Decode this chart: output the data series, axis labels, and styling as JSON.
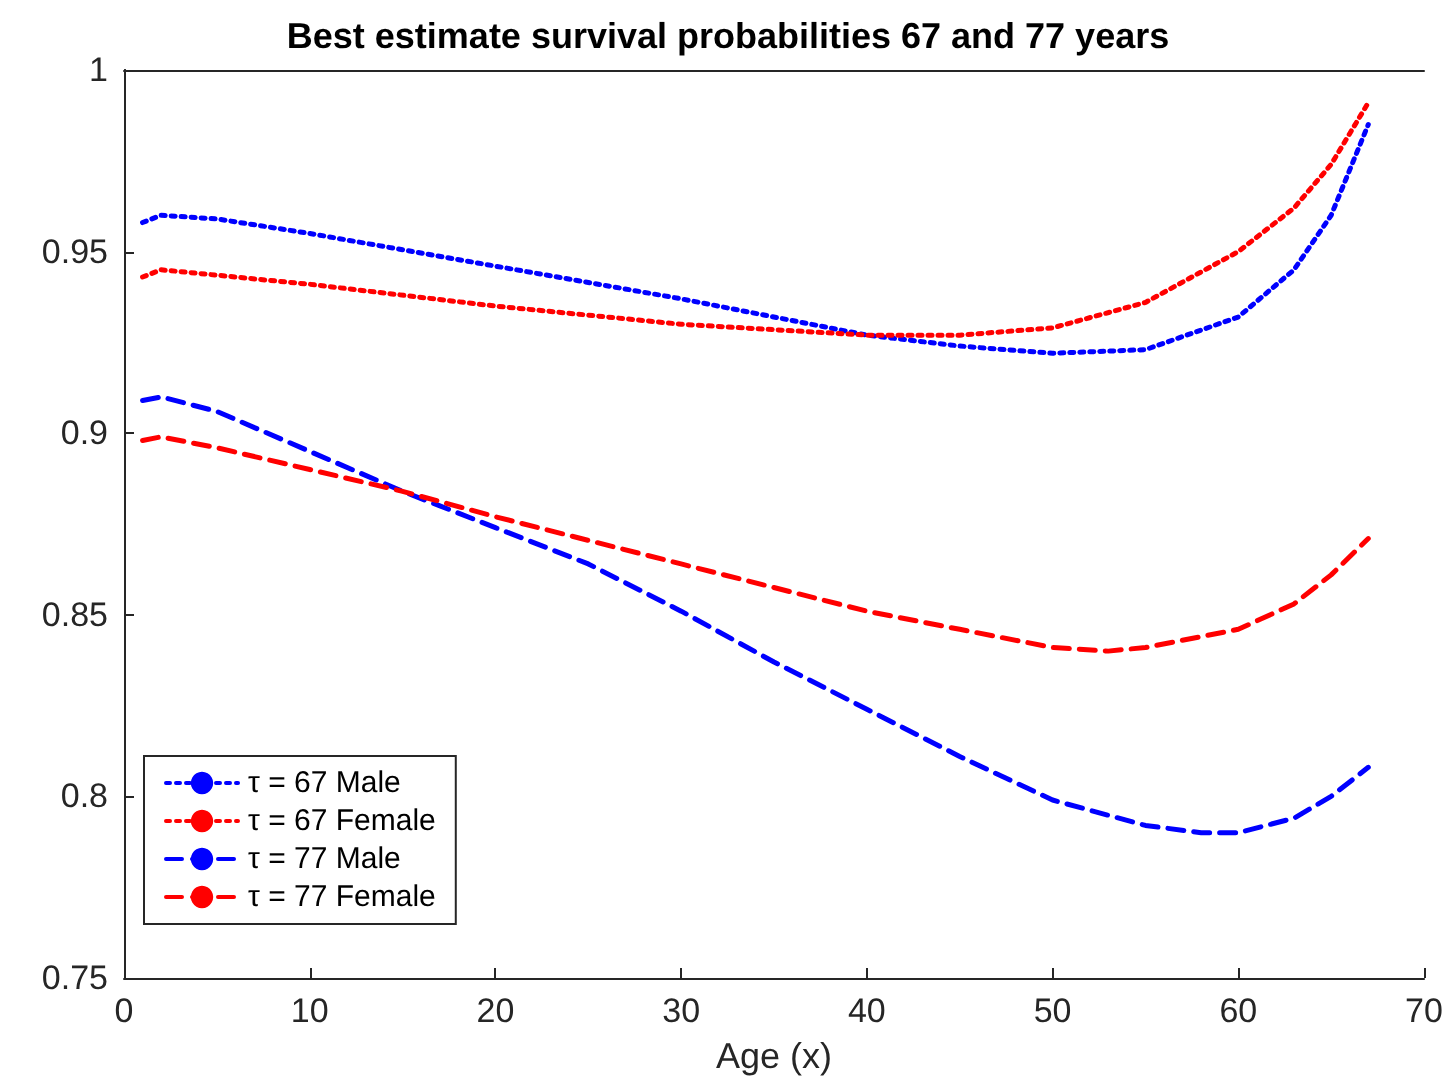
{
  "chart_data": {
    "type": "line",
    "title": "Best estimate survival probabilities 67 and 77 years",
    "xlabel": "Age (x)",
    "xlim": [
      0,
      70
    ],
    "xticks": [
      0,
      10,
      20,
      30,
      40,
      50,
      60,
      70
    ],
    "ylim": [
      0.75,
      1
    ],
    "yticks": [
      0.75,
      0.8,
      0.85,
      0.9,
      0.95,
      1
    ],
    "grid": false,
    "legend": "bottom left",
    "marker": "none",
    "series": [
      {
        "name": "τ = 67 Male",
        "color": "#0000ff",
        "line_style": "dotted",
        "x": [
          1,
          2,
          5,
          10,
          20,
          30,
          40,
          45,
          50,
          55,
          60,
          63,
          65,
          67
        ],
        "values": [
          0.958,
          0.96,
          0.959,
          0.955,
          0.946,
          0.937,
          0.927,
          0.924,
          0.922,
          0.923,
          0.932,
          0.945,
          0.96,
          0.985
        ]
      },
      {
        "name": "τ = 67 Female",
        "color": "#ff0000",
        "line_style": "dotted",
        "x": [
          1,
          2,
          10,
          20,
          30,
          40,
          45,
          50,
          55,
          60,
          63,
          65,
          67
        ],
        "values": [
          0.943,
          0.945,
          0.941,
          0.935,
          0.93,
          0.927,
          0.927,
          0.929,
          0.936,
          0.95,
          0.962,
          0.974,
          0.991
        ]
      },
      {
        "name": "τ = 77 Male",
        "color": "#0000ff",
        "line_style": "dashed",
        "x": [
          1,
          2,
          5,
          10,
          15,
          20,
          25,
          30,
          35,
          40,
          45,
          50,
          55,
          58,
          60,
          63,
          65,
          67
        ],
        "values": [
          0.909,
          0.91,
          0.906,
          0.895,
          0.884,
          0.874,
          0.864,
          0.851,
          0.837,
          0.824,
          0.811,
          0.799,
          0.792,
          0.79,
          0.79,
          0.794,
          0.8,
          0.808
        ]
      },
      {
        "name": "τ = 77 Female",
        "color": "#ff0000",
        "line_style": "dashed",
        "x": [
          1,
          2,
          5,
          10,
          15,
          20,
          30,
          40,
          45,
          50,
          53,
          55,
          60,
          63,
          65,
          67
        ],
        "values": [
          0.898,
          0.899,
          0.896,
          0.89,
          0.884,
          0.877,
          0.864,
          0.851,
          0.846,
          0.841,
          0.84,
          0.841,
          0.846,
          0.853,
          0.861,
          0.871
        ]
      }
    ]
  }
}
